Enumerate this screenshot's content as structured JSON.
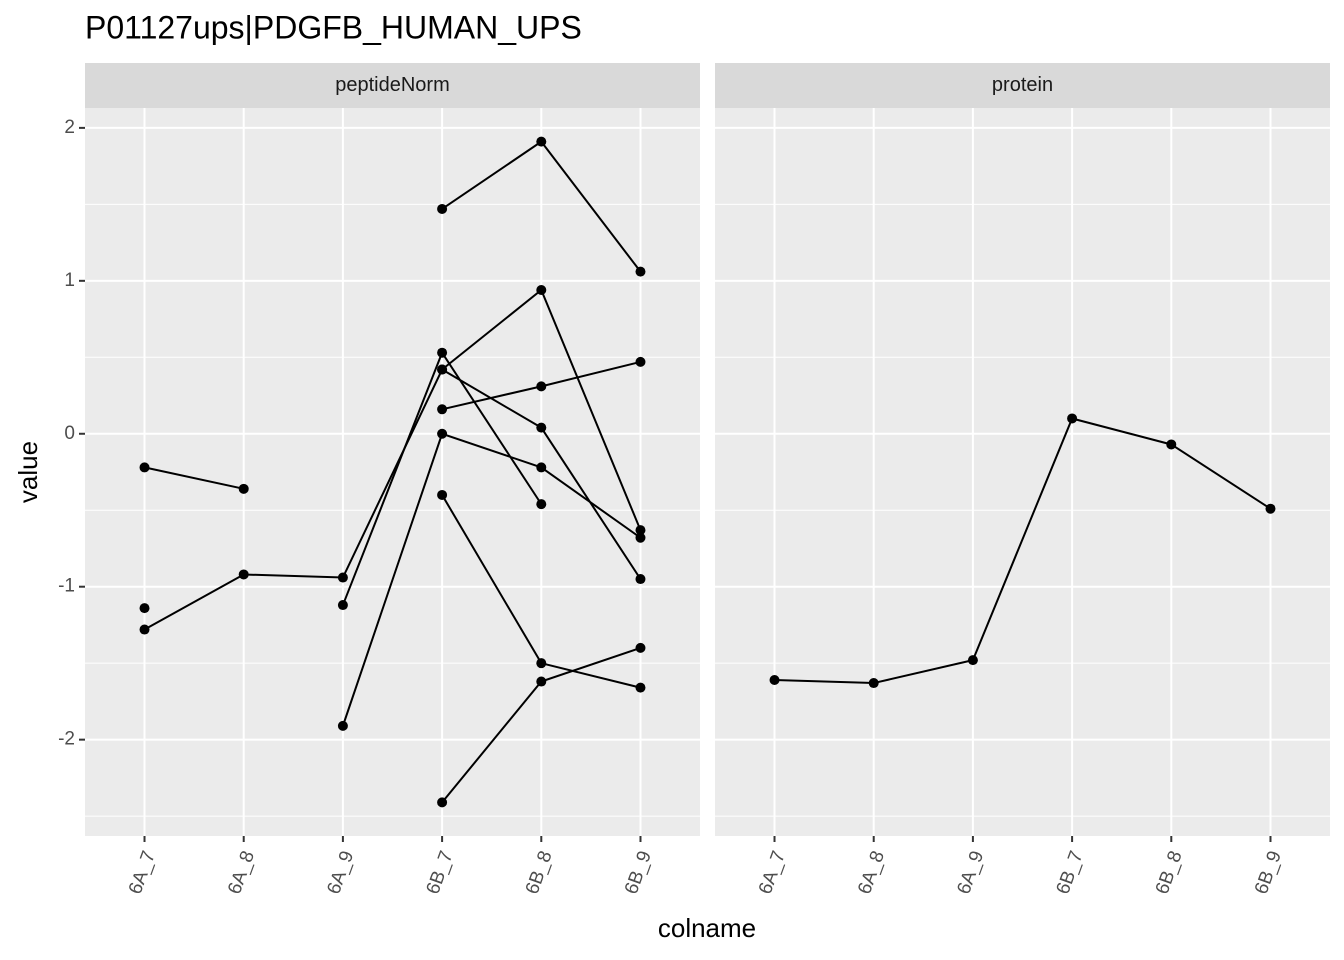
{
  "title": "P01127ups|PDGFB_HUMAN_UPS",
  "x_label": "colname",
  "y_label": "value",
  "chart_data": [
    {
      "type": "line",
      "facet": "peptideNorm",
      "categories": [
        "6A_7",
        "6A_8",
        "6A_9",
        "6B_7",
        "6B_8",
        "6B_9"
      ],
      "series": [
        {
          "color": "#000000",
          "values": [
            -0.22,
            -0.36,
            null,
            null,
            null,
            null
          ]
        },
        {
          "color": "#000000",
          "values": [
            -1.14,
            null,
            null,
            null,
            null,
            null
          ]
        },
        {
          "color": "#000000",
          "values": [
            -1.28,
            -0.92,
            -0.94,
            0.42,
            0.94,
            -0.63
          ]
        },
        {
          "color": "#000000",
          "values": [
            null,
            null,
            -1.12,
            0.53,
            -0.46,
            null
          ]
        },
        {
          "color": "#000000",
          "values": [
            null,
            null,
            null,
            0.42,
            0.04,
            -0.95
          ]
        },
        {
          "color": "#000000",
          "values": [
            null,
            null,
            -1.91,
            0.0,
            -0.22,
            -0.68
          ]
        },
        {
          "color": "#000000",
          "values": [
            null,
            null,
            null,
            1.47,
            1.91,
            1.06
          ]
        },
        {
          "color": "#000000",
          "values": [
            null,
            null,
            null,
            0.16,
            0.31,
            0.47
          ]
        },
        {
          "color": "#000000",
          "values": [
            null,
            null,
            null,
            -0.4,
            -1.5,
            -1.66
          ]
        },
        {
          "color": "#000000",
          "values": [
            null,
            null,
            null,
            -2.41,
            -1.62,
            -1.4
          ]
        }
      ],
      "ylim": [
        -2.63,
        2.13
      ],
      "yticks": [
        -2,
        -1,
        0,
        1,
        2
      ],
      "grid": true
    },
    {
      "type": "line",
      "facet": "protein",
      "categories": [
        "6A_7",
        "6A_8",
        "6A_9",
        "6B_7",
        "6B_8",
        "6B_9"
      ],
      "series": [
        {
          "color": "#000000",
          "values": [
            -1.61,
            -1.63,
            -1.48,
            0.1,
            -0.07,
            -0.49
          ]
        }
      ],
      "ylim": [
        -2.63,
        2.13
      ],
      "yticks": [
        -2,
        -1,
        0,
        1,
        2
      ],
      "grid": true
    }
  ]
}
